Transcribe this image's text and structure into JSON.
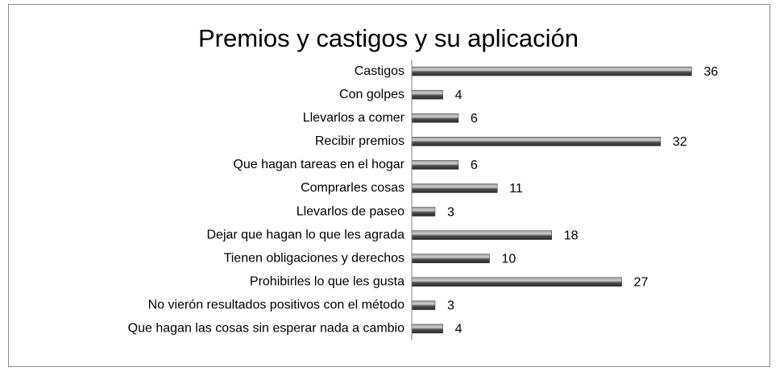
{
  "chart_data": {
    "type": "barh",
    "title": "Premios y castigos y su aplicación",
    "categories": [
      "Castigos",
      "Con golpes",
      "Llevarlos a comer",
      "Recibir premios",
      "Que hagan tareas en el hogar",
      "Comprarles cosas",
      "Llevarlos de paseo",
      "Dejar que hagan lo que les agrada",
      "Tienen obligaciones y derechos",
      "Prohibirles lo que les gusta",
      "No vierón resultados positivos con el método",
      "Que hagan las cosas sin esperar nada a cambio"
    ],
    "values": [
      36,
      4,
      6,
      32,
      6,
      11,
      3,
      18,
      10,
      27,
      3,
      4
    ],
    "color": "#4d4d4d",
    "xlim": [
      0,
      40
    ]
  }
}
